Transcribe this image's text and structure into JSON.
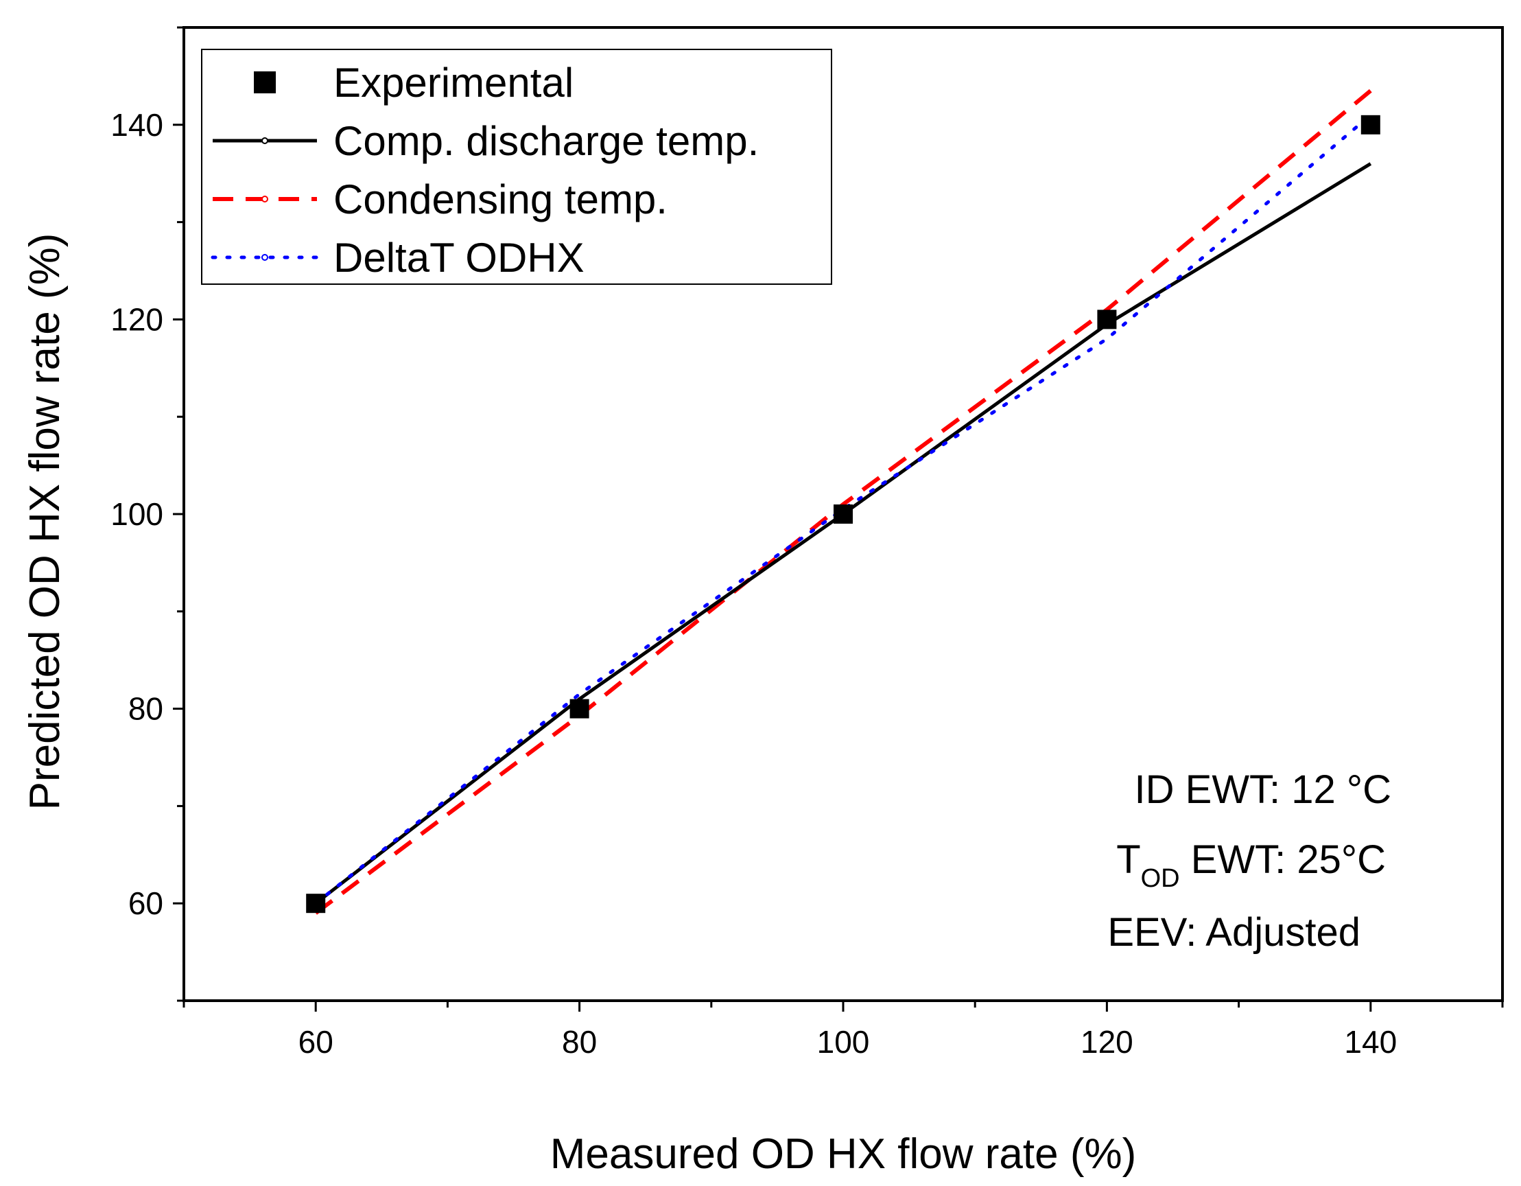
{
  "chart_data": {
    "type": "line",
    "title": "",
    "xlabel": "Measured OD HX flow rate (%)",
    "ylabel": "Predicted OD HX flow rate (%)",
    "xlim": [
      50,
      150
    ],
    "ylim": [
      50,
      150
    ],
    "x_ticks": [
      60,
      80,
      100,
      120,
      140
    ],
    "y_ticks": [
      60,
      80,
      100,
      120,
      140
    ],
    "x_tick_labels": [
      "60",
      "80",
      "100",
      "120",
      "140"
    ],
    "y_tick_labels": [
      "60",
      "80",
      "100",
      "120",
      "140"
    ],
    "legend_position": "top-left",
    "series": [
      {
        "name": "Experimental",
        "style": "markers",
        "marker": "square",
        "color": "#000000",
        "x": [
          60,
          80,
          100,
          120,
          140
        ],
        "y": [
          60,
          80,
          100,
          120,
          140
        ]
      },
      {
        "name": "Comp. discharge temp.",
        "style": "solid",
        "color": "#000000",
        "x": [
          60,
          80,
          100,
          120,
          140
        ],
        "y": [
          60,
          81,
          100,
          119.5,
          136
        ]
      },
      {
        "name": "Condensing temp.",
        "style": "dashed",
        "color": "#ff0000",
        "x": [
          60,
          80,
          100,
          120,
          140
        ],
        "y": [
          59,
          79.3,
          101,
          121,
          143.5
        ]
      },
      {
        "name": "DeltaT ODHX",
        "style": "dotted",
        "color": "#0000ff",
        "x": [
          60,
          80,
          100,
          120,
          140
        ],
        "y": [
          60,
          81.5,
          100.5,
          118,
          141
        ]
      }
    ],
    "annotations": {
      "line1": "ID EWT: 12 °C",
      "line2_t": "T",
      "line2_sub": "OD",
      "line2_rest": " EWT: 25°C",
      "line3": "EEV: Adjusted"
    }
  }
}
